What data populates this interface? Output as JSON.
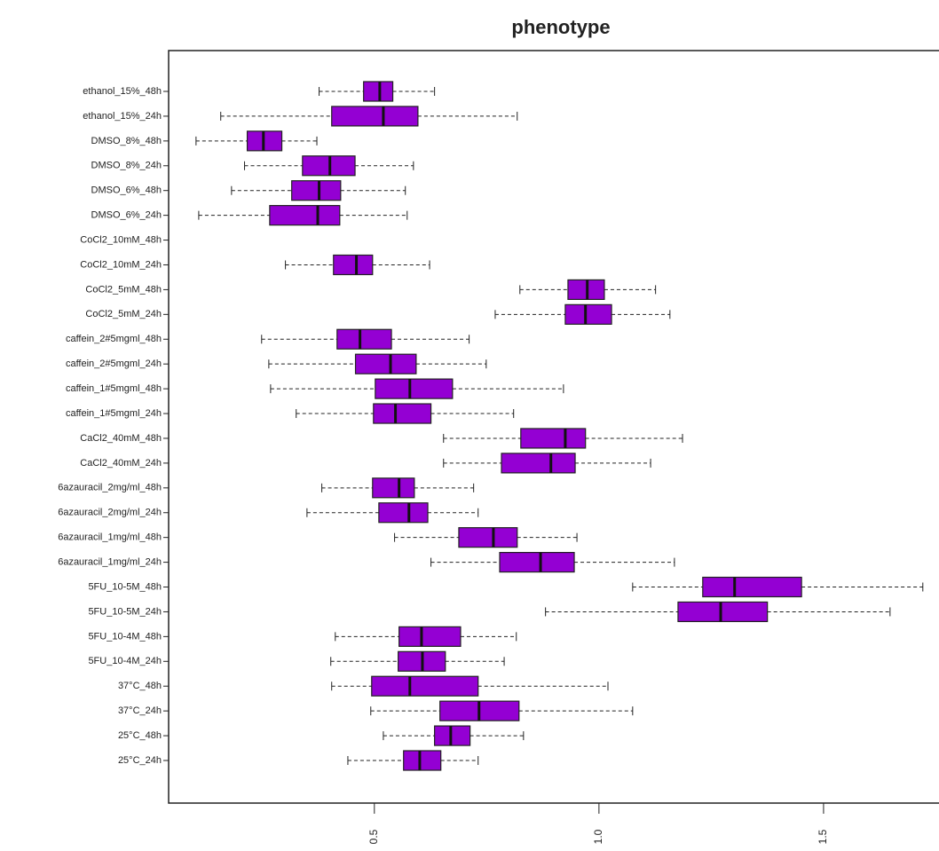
{
  "chart_data": {
    "type": "boxplot",
    "title": "phenotype",
    "orientation": "horizontal",
    "color": "#9400d3",
    "categories": [
      "ethanol_15%_48h",
      "ethanol_15%_24h",
      "DMSO_8%_48h",
      "DMSO_8%_24h",
      "DMSO_6%_48h",
      "DMSO_6%_24h",
      "CoCl2_10mM_48h",
      "CoCl2_10mM_24h",
      "CoCl2_5mM_48h",
      "CoCl2_5mM_24h",
      "caffein_2#5mgml_48h",
      "caffein_2#5mgml_24h",
      "caffein_1#5mgml_48h",
      "caffein_1#5mgml_24h",
      "CaCl2_40mM_48h",
      "CaCl2_40mM_24h",
      "6azauracil_2mg/ml_48h",
      "6azauracil_2mg/ml_24h",
      "6azauracil_1mg/ml_48h",
      "6azauracil_1mg/ml_24h",
      "5FU_10-5M_48h",
      "5FU_10-5M_24h",
      "5FU_10-4M_48h",
      "5FU_10-4M_24h",
      "37°C_48h",
      "37°C_24h",
      "25°C_48h",
      "25°C_24h"
    ],
    "low": [
      0.377,
      0.158,
      0.103,
      0.211,
      0.182,
      0.109,
      null,
      0.302,
      0.824,
      0.769,
      0.249,
      0.265,
      0.269,
      0.326,
      0.654,
      0.654,
      0.383,
      0.35,
      0.545,
      0.626,
      1.075,
      0.881,
      0.413,
      0.403,
      0.405,
      0.492,
      0.52,
      0.441
    ],
    "q1": [
      0.476,
      0.405,
      0.217,
      0.34,
      0.316,
      0.267,
      null,
      0.409,
      0.931,
      0.925,
      0.417,
      0.458,
      0.502,
      0.498,
      0.826,
      0.783,
      0.496,
      0.51,
      0.688,
      0.779,
      1.231,
      1.176,
      0.555,
      0.553,
      0.494,
      0.646,
      0.634,
      0.565
    ],
    "median": [
      0.512,
      0.52,
      0.253,
      0.401,
      0.377,
      0.374,
      null,
      0.46,
      0.974,
      0.97,
      0.468,
      0.536,
      0.579,
      0.547,
      0.925,
      0.893,
      0.555,
      0.577,
      0.765,
      0.87,
      1.302,
      1.271,
      0.605,
      0.607,
      0.579,
      0.733,
      0.67,
      0.601
    ],
    "q3": [
      0.541,
      0.597,
      0.294,
      0.457,
      0.425,
      0.423,
      null,
      0.496,
      1.012,
      1.028,
      0.538,
      0.593,
      0.674,
      0.626,
      0.97,
      0.947,
      0.589,
      0.619,
      0.818,
      0.945,
      1.451,
      1.375,
      0.692,
      0.658,
      0.731,
      0.822,
      0.713,
      0.648
    ],
    "high": [
      0.634,
      0.818,
      0.372,
      0.587,
      0.569,
      0.573,
      null,
      0.623,
      1.126,
      1.158,
      0.711,
      0.749,
      0.921,
      0.81,
      1.186,
      1.115,
      0.721,
      0.731,
      0.951,
      1.168,
      1.721,
      1.648,
      0.816,
      0.789,
      1.02,
      1.075,
      0.832,
      0.731
    ],
    "xlim": [
      0.042,
      1.757
    ],
    "xticks": [
      0.5,
      {
        "value": 1,
        "label": "1.0"
      },
      1.5
    ]
  }
}
